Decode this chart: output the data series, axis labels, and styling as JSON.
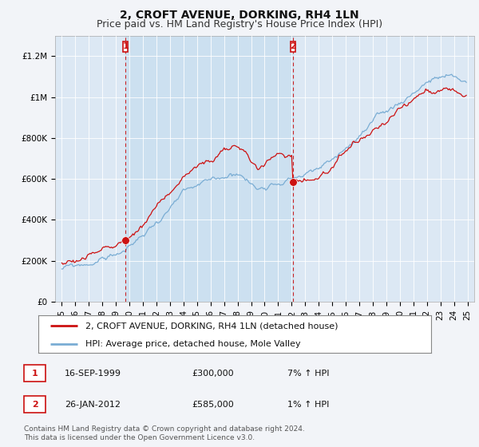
{
  "title": "2, CROFT AVENUE, DORKING, RH4 1LN",
  "subtitle": "Price paid vs. HM Land Registry's House Price Index (HPI)",
  "ylabel_ticks": [
    "£0",
    "£200K",
    "£400K",
    "£600K",
    "£800K",
    "£1M",
    "£1.2M"
  ],
  "ytick_values": [
    0,
    200000,
    400000,
    600000,
    800000,
    1000000,
    1200000
  ],
  "ylim": [
    0,
    1300000
  ],
  "xlim_start": 1994.5,
  "xlim_end": 2025.5,
  "purchase1_date": 1999.71,
  "purchase1_price": 300000,
  "purchase2_date": 2012.07,
  "purchase2_price": 585000,
  "hpi_color": "#7aadd4",
  "price_color": "#cc1111",
  "vline_color": "#cc1111",
  "shade_color": "#cce0f0",
  "background_color": "#f2f4f8",
  "plot_bg_color": "#dce8f4",
  "legend_label_price": "2, CROFT AVENUE, DORKING, RH4 1LN (detached house)",
  "legend_label_hpi": "HPI: Average price, detached house, Mole Valley",
  "table_row1": [
    "1",
    "16-SEP-1999",
    "£300,000",
    "7% ↑ HPI"
  ],
  "table_row2": [
    "2",
    "26-JAN-2012",
    "£585,000",
    "1% ↑ HPI"
  ],
  "footer": "Contains HM Land Registry data © Crown copyright and database right 2024.\nThis data is licensed under the Open Government Licence v3.0.",
  "title_fontsize": 10,
  "subtitle_fontsize": 9,
  "tick_fontsize": 7.5,
  "legend_fontsize": 8,
  "table_fontsize": 8,
  "footer_fontsize": 6.5,
  "box_color": "#cc1111"
}
